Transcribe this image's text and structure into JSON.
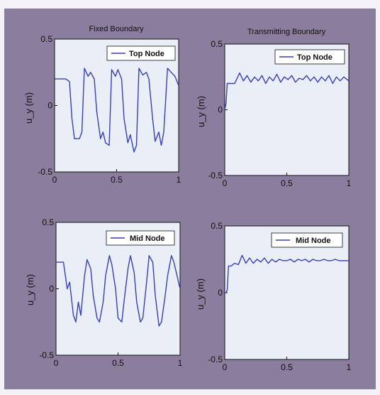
{
  "chart_data": [
    {
      "type": "line",
      "title": "Fixed Boundary",
      "ylabel": "u_y (m)",
      "xlim": [
        0,
        1
      ],
      "ylim": [
        -0.5,
        0.5
      ],
      "xticks": [
        "0",
        "0.5",
        "1"
      ],
      "yticks": [
        "0.5",
        "0",
        "-0.5"
      ],
      "legend": "top-right",
      "series": [
        {
          "name": "Top Node",
          "x": [
            0,
            0.09,
            0.12,
            0.14,
            0.16,
            0.2,
            0.22,
            0.24,
            0.27,
            0.29,
            0.32,
            0.34,
            0.37,
            0.39,
            0.41,
            0.44,
            0.46,
            0.49,
            0.51,
            0.54,
            0.56,
            0.59,
            0.61,
            0.64,
            0.66,
            0.68,
            0.71,
            0.74,
            0.76,
            0.79,
            0.81,
            0.84,
            0.86,
            0.88,
            0.91,
            0.94,
            0.97,
            1.0
          ],
          "y": [
            0.2,
            0.2,
            0.18,
            -0.1,
            -0.25,
            -0.25,
            -0.2,
            0.28,
            0.22,
            0.25,
            0.2,
            -0.05,
            -0.25,
            -0.2,
            -0.28,
            -0.3,
            0.27,
            0.22,
            0.27,
            0.2,
            -0.1,
            -0.28,
            -0.22,
            -0.35,
            -0.3,
            0.28,
            0.23,
            0.25,
            0.2,
            -0.1,
            -0.27,
            -0.2,
            -0.3,
            -0.2,
            0.28,
            0.25,
            0.22,
            0.15
          ]
        }
      ]
    },
    {
      "type": "line",
      "title": "Transmitting Boundary",
      "ylabel": "u_y (m)",
      "xlim": [
        0,
        1
      ],
      "ylim": [
        -0.5,
        0.5
      ],
      "xticks": [
        "0",
        "0.5",
        "1"
      ],
      "yticks": [
        "0.5",
        "0",
        "-0.5"
      ],
      "legend": "top-right",
      "series": [
        {
          "name": "Top Node",
          "x": [
            0,
            0.01,
            0.02,
            0.05,
            0.08,
            0.12,
            0.15,
            0.18,
            0.21,
            0.24,
            0.27,
            0.3,
            0.33,
            0.36,
            0.39,
            0.42,
            0.45,
            0.48,
            0.51,
            0.54,
            0.57,
            0.6,
            0.63,
            0.66,
            0.69,
            0.72,
            0.75,
            0.78,
            0.81,
            0.84,
            0.87,
            0.9,
            0.93,
            0.96,
            1.0
          ],
          "y": [
            0.0,
            0.05,
            0.2,
            0.2,
            0.2,
            0.28,
            0.22,
            0.26,
            0.21,
            0.25,
            0.22,
            0.26,
            0.2,
            0.25,
            0.22,
            0.27,
            0.21,
            0.25,
            0.23,
            0.26,
            0.21,
            0.24,
            0.23,
            0.26,
            0.22,
            0.25,
            0.21,
            0.25,
            0.22,
            0.26,
            0.2,
            0.25,
            0.22,
            0.25,
            0.22
          ]
        }
      ]
    },
    {
      "type": "line",
      "title": "",
      "ylabel": "u_y (m)",
      "xlim": [
        0,
        1
      ],
      "ylim": [
        -0.5,
        0.5
      ],
      "xticks": [
        "0",
        "0.5",
        "1"
      ],
      "yticks": [
        "0.5",
        "0",
        "-0.5"
      ],
      "legend": "top-right",
      "series": [
        {
          "name": "Mid Node",
          "x": [
            0,
            0.06,
            0.09,
            0.11,
            0.14,
            0.16,
            0.18,
            0.2,
            0.23,
            0.25,
            0.28,
            0.3,
            0.33,
            0.35,
            0.38,
            0.4,
            0.43,
            0.45,
            0.48,
            0.5,
            0.53,
            0.55,
            0.58,
            0.6,
            0.63,
            0.65,
            0.68,
            0.7,
            0.73,
            0.75,
            0.78,
            0.8,
            0.83,
            0.85,
            0.88,
            0.9,
            0.93,
            0.95,
            1.0
          ],
          "y": [
            0.2,
            0.2,
            0.0,
            0.05,
            -0.2,
            -0.25,
            -0.1,
            -0.2,
            0.1,
            0.22,
            0.15,
            -0.05,
            -0.22,
            -0.25,
            -0.1,
            0.1,
            0.25,
            0.18,
            0.0,
            -0.22,
            -0.25,
            -0.08,
            0.15,
            0.25,
            0.12,
            -0.1,
            -0.25,
            -0.22,
            0.05,
            0.25,
            0.2,
            -0.05,
            -0.28,
            -0.25,
            -0.05,
            0.1,
            0.25,
            0.2,
            0.0
          ]
        }
      ]
    },
    {
      "type": "line",
      "title": "",
      "ylabel": "u_y (m)",
      "xlim": [
        0,
        1
      ],
      "ylim": [
        -0.5,
        0.5
      ],
      "xticks": [
        "0",
        "0.5",
        "1"
      ],
      "yticks": [
        "0.5",
        "0",
        "-0.5"
      ],
      "legend": "top-right",
      "series": [
        {
          "name": "Mid Node",
          "x": [
            0,
            0.01,
            0.02,
            0.03,
            0.05,
            0.08,
            0.11,
            0.14,
            0.17,
            0.2,
            0.23,
            0.26,
            0.29,
            0.32,
            0.35,
            0.38,
            0.41,
            0.44,
            0.47,
            0.5,
            0.53,
            0.56,
            0.59,
            0.62,
            0.65,
            0.68,
            0.71,
            0.74,
            0.77,
            0.8,
            0.83,
            0.86,
            0.89,
            0.92,
            0.95,
            0.98,
            1.0
          ],
          "y": [
            0.0,
            0.0,
            0.02,
            0.2,
            0.2,
            0.22,
            0.21,
            0.28,
            0.22,
            0.26,
            0.22,
            0.25,
            0.23,
            0.26,
            0.22,
            0.25,
            0.23,
            0.25,
            0.24,
            0.24,
            0.25,
            0.23,
            0.25,
            0.24,
            0.25,
            0.23,
            0.25,
            0.24,
            0.24,
            0.25,
            0.24,
            0.24,
            0.25,
            0.24,
            0.24,
            0.24,
            0.24
          ]
        }
      ]
    }
  ]
}
